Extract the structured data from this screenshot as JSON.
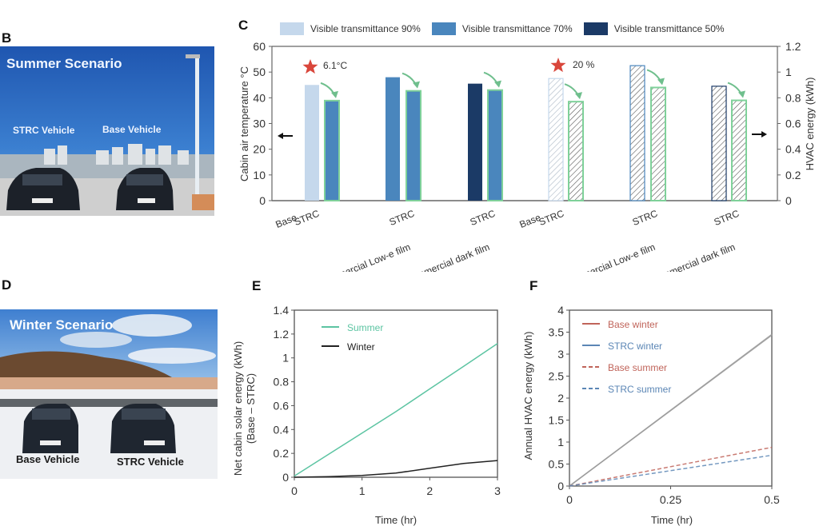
{
  "panels": {
    "B": {
      "letter": "B",
      "title": "Summer Scenario",
      "left_label": "STRC Vehicle",
      "right_label": "Base Vehicle"
    },
    "D": {
      "letter": "D",
      "title": "Winter Scenario",
      "left_label": "Base Vehicle",
      "right_label": "STRC Vehicle"
    },
    "C": {
      "letter": "C"
    },
    "E": {
      "letter": "E"
    },
    "F": {
      "letter": "F"
    }
  },
  "colors": {
    "vt90": "#c5d8ec",
    "vt70": "#4a86bd",
    "vt50": "#1b3a66",
    "strc_outline": "#7fd19a",
    "arrow_green": "#6fbf8d",
    "star": "#d9463b",
    "summer": "#5cc4a2",
    "winter": "#222222",
    "base_line": "#c0645a",
    "strc_line": "#5b86b5",
    "axis": "#555555"
  },
  "chart_data": [
    {
      "id": "C",
      "type": "bar",
      "legend": [
        {
          "label": "Visible transmittance 90%",
          "color_key": "vt90"
        },
        {
          "label": "Visible transmittance 70%",
          "color_key": "vt70"
        },
        {
          "label": "Visible transmittance 50%",
          "color_key": "vt50"
        }
      ],
      "left_axis": {
        "label": "Cabin air temperature °C",
        "ylim": [
          0,
          60
        ],
        "ticks": [
          "0",
          "10",
          "20",
          "30",
          "40",
          "50",
          "60"
        ]
      },
      "right_axis": {
        "label": "HVAC energy (kWh)",
        "ylim": [
          0,
          1.2
        ],
        "ticks": [
          "0",
          "0.2",
          "0.4",
          "0.6",
          "0.8",
          "1",
          "1.2"
        ]
      },
      "temperature_bars": [
        {
          "category": "Base",
          "value": 45.0,
          "color_key": "vt90",
          "strc": false
        },
        {
          "category": "STRC",
          "value": 38.9,
          "color_key": "vt70",
          "strc": true
        },
        {
          "category": "Commercial Low-e film",
          "value": 48.0,
          "color_key": "vt70",
          "strc": false
        },
        {
          "category": "STRC",
          "value": 42.7,
          "color_key": "vt70",
          "strc": true
        },
        {
          "category": "Commercial dark film",
          "value": 45.5,
          "color_key": "vt50",
          "strc": false
        },
        {
          "category": "STRC",
          "value": 43.0,
          "color_key": "vt70",
          "strc": true
        }
      ],
      "energy_bars": [
        {
          "category": "Base",
          "value": 0.95,
          "color_key": "vt90",
          "strc": false
        },
        {
          "category": "STRC",
          "value": 0.77,
          "color_key": "vt70",
          "strc": true
        },
        {
          "category": "Commercial Low-e film",
          "value": 1.05,
          "color_key": "vt70",
          "strc": false
        },
        {
          "category": "STRC",
          "value": 0.88,
          "color_key": "vt70",
          "strc": true
        },
        {
          "category": "Commercial dark film",
          "value": 0.89,
          "color_key": "vt50",
          "strc": false
        },
        {
          "category": "STRC",
          "value": 0.78,
          "color_key": "vt70",
          "strc": true
        }
      ],
      "annotations": [
        {
          "text": "6.1°C",
          "section": "temperature"
        },
        {
          "text": "20 %",
          "section": "energy"
        }
      ]
    },
    {
      "id": "E",
      "type": "line",
      "xlabel": "Time (hr)",
      "ylabel": "Net cabin solar energy (kWh)",
      "ylabel2": "(Base – STRC)",
      "xlim": [
        0,
        3
      ],
      "ylim": [
        0,
        1.4
      ],
      "xticks": [
        "0",
        "1",
        "2",
        "3"
      ],
      "yticks": [
        "0",
        "0.2",
        "0.4",
        "0.6",
        "0.8",
        "1",
        "1.2",
        "1.4"
      ],
      "legend_position": "top-left",
      "series": [
        {
          "name": "Summer",
          "color_key": "summer",
          "dashed": false,
          "x": [
            0,
            0.5,
            1,
            1.5,
            2,
            2.5,
            3
          ],
          "y": [
            0.01,
            0.19,
            0.37,
            0.55,
            0.74,
            0.93,
            1.12
          ]
        },
        {
          "name": "Winter",
          "color_key": "winter",
          "dashed": false,
          "x": [
            0,
            0.5,
            1,
            1.5,
            2,
            2.5,
            3
          ],
          "y": [
            0.0,
            0.005,
            0.015,
            0.035,
            0.075,
            0.115,
            0.14
          ]
        }
      ]
    },
    {
      "id": "F",
      "type": "line",
      "xlabel": "Time (hr)",
      "ylabel": "Annual HVAC energy (kWh)",
      "xlim": [
        0,
        0.5
      ],
      "ylim": [
        0,
        4
      ],
      "xticks": [
        "0",
        "0.25",
        "0.5"
      ],
      "yticks": [
        "0",
        "0.5",
        "1",
        "1.5",
        "2",
        "2.5",
        "3",
        "3.5",
        "4"
      ],
      "legend_position": "top-left",
      "series": [
        {
          "name": "Base winter",
          "color_key": "base_line",
          "dashed": false,
          "x": [
            0,
            0.5
          ],
          "y": [
            0,
            3.45
          ]
        },
        {
          "name": "STRC winter",
          "color_key": "strc_line",
          "dashed": false,
          "x": [
            0,
            0.5
          ],
          "y": [
            0,
            3.43
          ]
        },
        {
          "name": "Base summer",
          "color_key": "base_line",
          "dashed": true,
          "x": [
            0,
            0.5
          ],
          "y": [
            0,
            0.88
          ]
        },
        {
          "name": "STRC summer",
          "color_key": "strc_line",
          "dashed": true,
          "x": [
            0,
            0.5
          ],
          "y": [
            0,
            0.7
          ]
        }
      ]
    }
  ]
}
